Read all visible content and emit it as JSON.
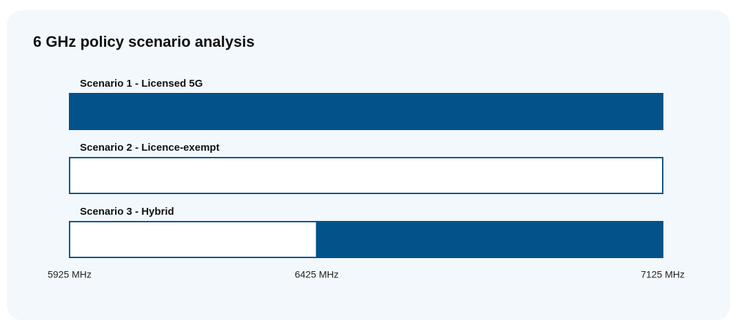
{
  "chart_data": {
    "type": "spectrum",
    "title": "6 GHz policy scenario analysis",
    "xlim": [
      5925,
      7125
    ],
    "xticks": [
      {
        "value": 5925,
        "label": "5925 MHz"
      },
      {
        "value": 6425,
        "label": "6425 MHz"
      },
      {
        "value": 7125,
        "label": "7125 MHz"
      }
    ],
    "outline_color": "#03528a",
    "scenarios": [
      {
        "name": "Scenario 1 - Licensed 5G",
        "segments": [
          {
            "start": 5925,
            "end": 7125,
            "color": "#03528a"
          }
        ]
      },
      {
        "name": "Scenario 2 - Licence-exempt",
        "segments": [
          {
            "start": 5925,
            "end": 7125,
            "color": "#ffffff"
          }
        ]
      },
      {
        "name": "Scenario 3 - Hybrid",
        "segments": [
          {
            "start": 5925,
            "end": 6425,
            "color": "#ffffff"
          },
          {
            "start": 6425,
            "end": 7125,
            "color": "#03528a"
          }
        ]
      }
    ]
  }
}
